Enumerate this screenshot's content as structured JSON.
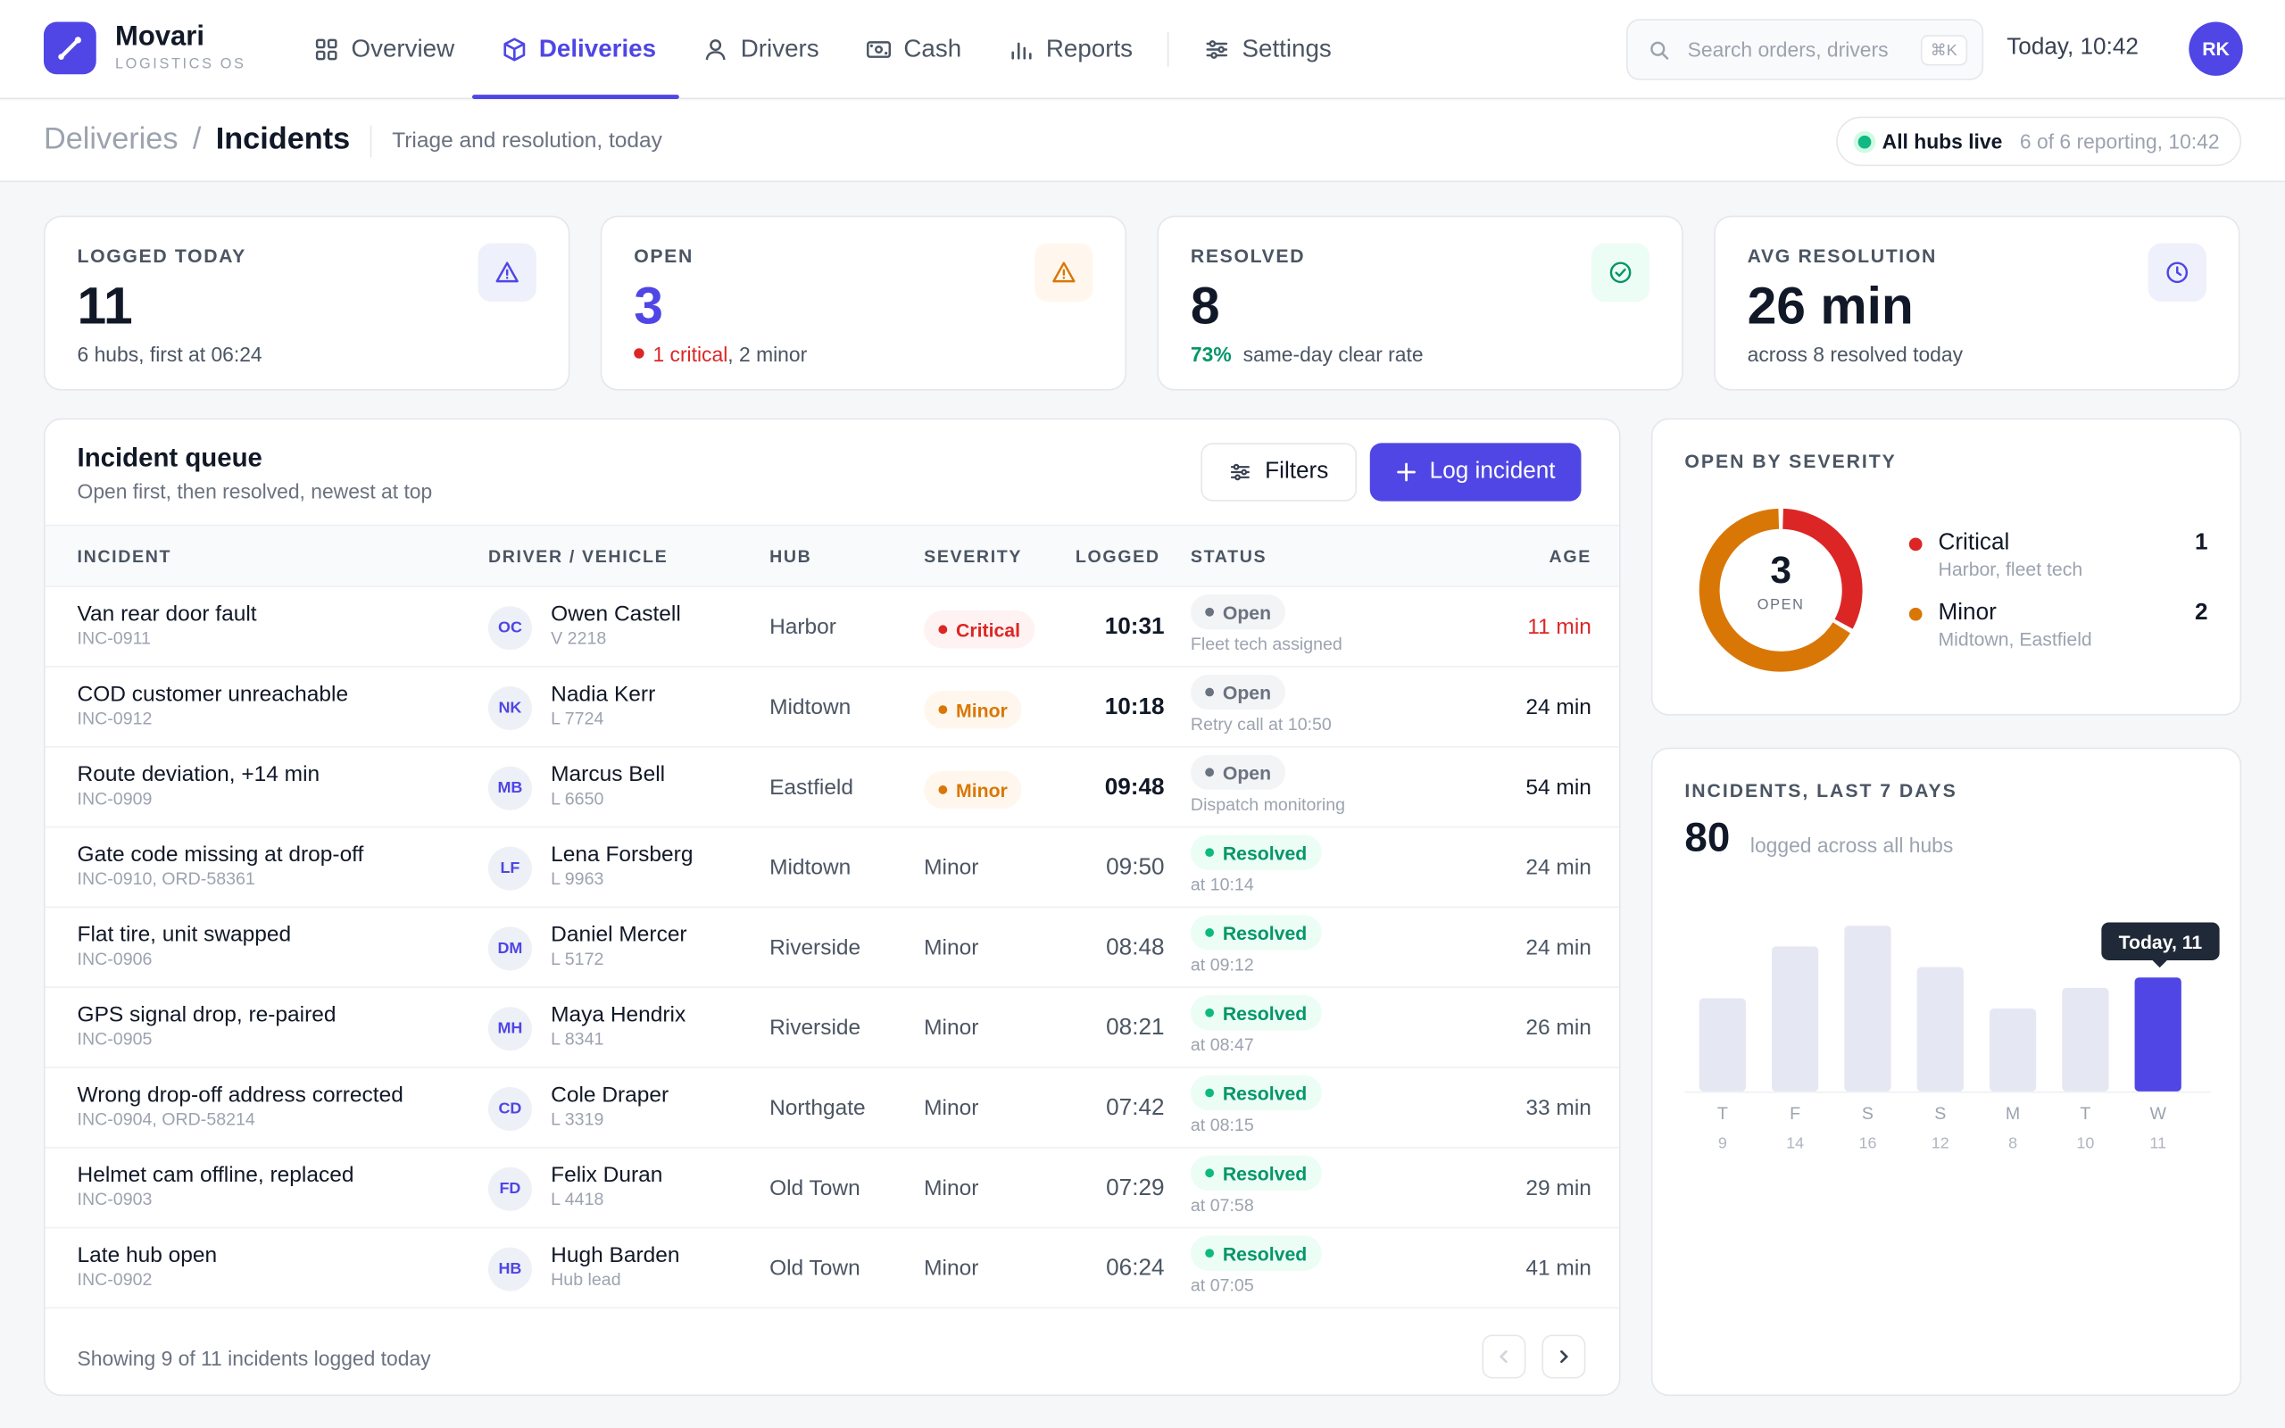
{
  "app": {
    "name": "Movari",
    "subtitle": "LOGISTICS OS"
  },
  "nav": [
    {
      "label": "Overview",
      "icon": "grid-icon",
      "active": false
    },
    {
      "label": "Deliveries",
      "icon": "box-icon",
      "active": true
    },
    {
      "label": "Drivers",
      "icon": "user-icon",
      "active": false
    },
    {
      "label": "Cash",
      "icon": "banknote-icon",
      "active": false
    },
    {
      "label": "Reports",
      "icon": "bar-chart-icon",
      "active": false
    },
    {
      "label": "Settings",
      "icon": "sliders-icon",
      "active": false
    }
  ],
  "search": {
    "placeholder": "Search orders, drivers",
    "shortcut": "⌘K"
  },
  "clock": "Today, 10:42",
  "user": {
    "initials": "RK"
  },
  "breadcrumb": {
    "parent": "Deliveries",
    "separator": "/",
    "current": "Incidents"
  },
  "page_subtitle": "Triage and resolution, today",
  "hubs_status": {
    "label": "All hubs live",
    "detail": "6 of 6 reporting, 10:42"
  },
  "stats": {
    "logged": {
      "label": "LOGGED TODAY",
      "value": "11",
      "note": "6 hubs, first at 06:24"
    },
    "open": {
      "label": "OPEN",
      "value": "3",
      "critical": "1 critical",
      "rest": ", 2 minor"
    },
    "resolved": {
      "label": "RESOLVED",
      "value": "8",
      "rate": "73%",
      "note": "same-day clear rate"
    },
    "avg": {
      "label": "AVG RESOLUTION",
      "value": "26 min",
      "note": "across 8 resolved today"
    }
  },
  "queue": {
    "title": "Incident queue",
    "subtitle": "Open first, then resolved, newest at top",
    "filters_label": "Filters",
    "log_label": "Log incident",
    "columns": {
      "incident": "INCIDENT",
      "driver": "DRIVER / VEHICLE",
      "hub": "HUB",
      "severity": "SEVERITY",
      "logged": "LOGGED",
      "status": "STATUS",
      "age": "AGE"
    },
    "rows": [
      {
        "name": "Van rear door fault",
        "id": "INC-0911",
        "initials": "OC",
        "driver": "Owen Castell",
        "vehicle": "V 2218",
        "hub": "Harbor",
        "severity": "Critical",
        "logged": "10:31",
        "status": "Open",
        "status_note": "Fleet tech assigned",
        "age": "11 min"
      },
      {
        "name": "COD customer unreachable",
        "id": "INC-0912",
        "initials": "NK",
        "driver": "Nadia Kerr",
        "vehicle": "L 7724",
        "hub": "Midtown",
        "severity": "Minor",
        "logged": "10:18",
        "status": "Open",
        "status_note": "Retry call at 10:50",
        "age": "24 min"
      },
      {
        "name": "Route deviation, +14 min",
        "id": "INC-0909",
        "initials": "MB",
        "driver": "Marcus Bell",
        "vehicle": "L 6650",
        "hub": "Eastfield",
        "severity": "Minor",
        "logged": "09:48",
        "status": "Open",
        "status_note": "Dispatch monitoring",
        "age": "54 min"
      },
      {
        "name": "Gate code missing at drop-off",
        "id": "INC-0910, ORD-58361",
        "initials": "LF",
        "driver": "Lena Forsberg",
        "vehicle": "L 9963",
        "hub": "Midtown",
        "severity": "Minor",
        "logged": "09:50",
        "status": "Resolved",
        "status_note": "at 10:14",
        "age": "24 min"
      },
      {
        "name": "Flat tire, unit swapped",
        "id": "INC-0906",
        "initials": "DM",
        "driver": "Daniel Mercer",
        "vehicle": "L 5172",
        "hub": "Riverside",
        "severity": "Minor",
        "logged": "08:48",
        "status": "Resolved",
        "status_note": "at 09:12",
        "age": "24 min"
      },
      {
        "name": "GPS signal drop, re-paired",
        "id": "INC-0905",
        "initials": "MH",
        "driver": "Maya Hendrix",
        "vehicle": "L 8341",
        "hub": "Riverside",
        "severity": "Minor",
        "logged": "08:21",
        "status": "Resolved",
        "status_note": "at 08:47",
        "age": "26 min"
      },
      {
        "name": "Wrong drop-off address corrected",
        "id": "INC-0904, ORD-58214",
        "initials": "CD",
        "driver": "Cole Draper",
        "vehicle": "L 3319",
        "hub": "Northgate",
        "severity": "Minor",
        "logged": "07:42",
        "status": "Resolved",
        "status_note": "at 08:15",
        "age": "33 min"
      },
      {
        "name": "Helmet cam offline, replaced",
        "id": "INC-0903",
        "initials": "FD",
        "driver": "Felix Duran",
        "vehicle": "L 4418",
        "hub": "Old Town",
        "severity": "Minor",
        "logged": "07:29",
        "status": "Resolved",
        "status_note": "at 07:58",
        "age": "29 min"
      },
      {
        "name": "Late hub open",
        "id": "INC-0902",
        "initials": "HB",
        "driver": "Hugh Barden",
        "vehicle": "Hub lead",
        "hub": "Old Town",
        "severity": "Minor",
        "logged": "06:24",
        "status": "Resolved",
        "status_note": "at 07:05",
        "age": "41 min"
      }
    ],
    "footer": "Showing 9 of 11 incidents logged today"
  },
  "severity_panel": {
    "title": "OPEN BY SEVERITY",
    "total": "3",
    "total_label": "OPEN",
    "items": [
      {
        "name": "Critical",
        "detail": "Harbor, fleet tech",
        "count": "1",
        "value": 1,
        "color": "#dc2626"
      },
      {
        "name": "Minor",
        "detail": "Midtown, Eastfield",
        "count": "2",
        "value": 2,
        "color": "#d97706"
      }
    ]
  },
  "weekly": {
    "title": "INCIDENTS, LAST 7 DAYS",
    "total": "80",
    "note": "logged across all hubs",
    "tooltip": "Today, 11",
    "chart_data": {
      "type": "bar",
      "categories": [
        "T",
        "F",
        "S",
        "S",
        "M",
        "T",
        "W"
      ],
      "values": [
        9,
        14,
        16,
        12,
        8,
        10,
        11
      ],
      "highlight_index": 6,
      "colors": {
        "bar": "#e5e7f3",
        "highlight": "#4f46e5"
      }
    }
  }
}
